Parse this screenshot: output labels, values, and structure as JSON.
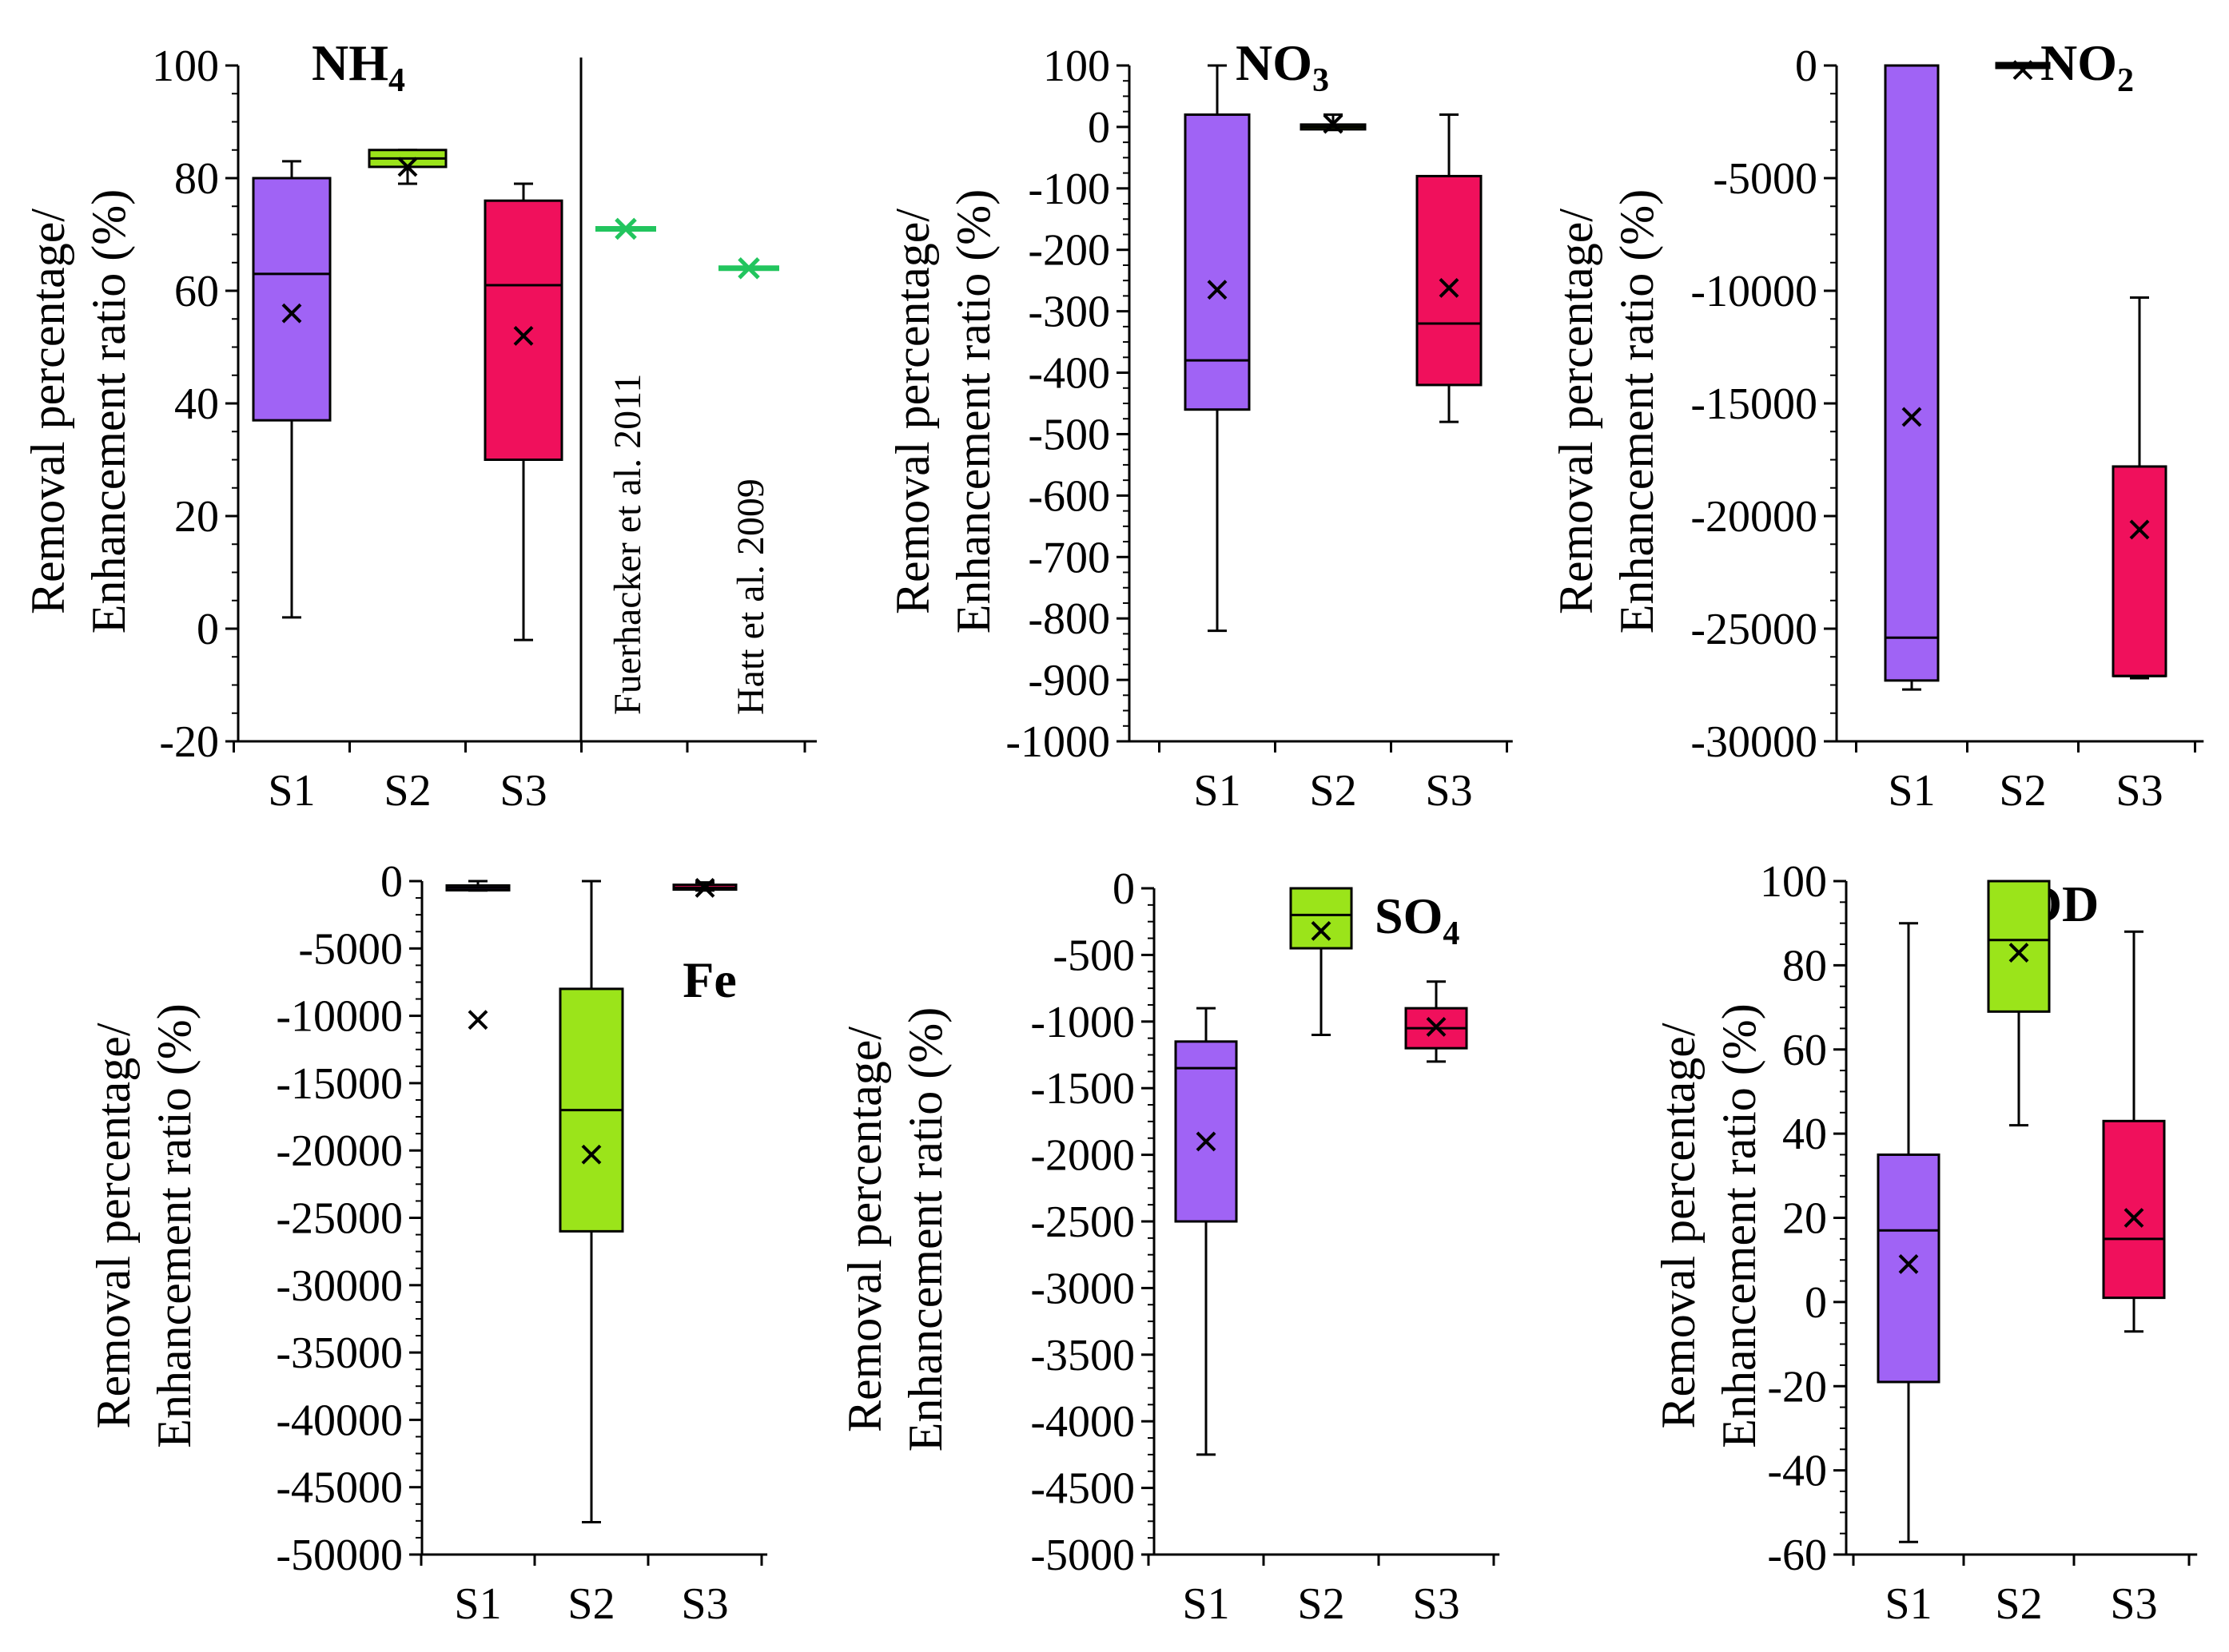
{
  "figure": {
    "y_axis_label_line1": "Removal percentage/",
    "y_axis_label_line2": "Enhancement ratio",
    "y_axis_unit": "(%)",
    "colors": {
      "S1": "#a063f5",
      "S2": "#9be41a",
      "S3": "#f0105c",
      "reference": "#22c55e"
    }
  },
  "chart_data": [
    {
      "type": "box",
      "title": "NH",
      "title_sub": "4",
      "ylim": [
        -20,
        100
      ],
      "yticks": [
        "100",
        "80",
        "60",
        "40",
        "20",
        "0",
        "-20"
      ],
      "categories": [
        "S1",
        "S2",
        "S3"
      ],
      "boxes": [
        {
          "name": "S1",
          "whisker_low": 2,
          "q1": 37,
          "median": 63,
          "q3": 80,
          "whisker_high": 83,
          "mean": 56
        },
        {
          "name": "S2",
          "whisker_low": 79,
          "q1": 82,
          "median": 83.5,
          "q3": 85,
          "whisker_high": 85,
          "mean": 82
        },
        {
          "name": "S3",
          "whisker_low": -2,
          "q1": 30,
          "median": 61,
          "q3": 76,
          "whisker_high": 79,
          "mean": 52
        }
      ],
      "references": [
        {
          "label": "Fuerhacker et al. 2011",
          "value": 71
        },
        {
          "label": "Hatt et al. 2009",
          "value": 64
        }
      ]
    },
    {
      "type": "box",
      "title": "NO",
      "title_sub": "3",
      "ylim": [
        -1000,
        100
      ],
      "yticks": [
        "100",
        "0",
        "-100",
        "-200",
        "-300",
        "-400",
        "-500",
        "-600",
        "-700",
        "-800",
        "-900",
        "-1000"
      ],
      "categories": [
        "S1",
        "S2",
        "S3"
      ],
      "boxes": [
        {
          "name": "S1",
          "whisker_low": -820,
          "q1": -460,
          "median": -380,
          "q3": 20,
          "whisker_high": 100,
          "mean": -265
        },
        {
          "name": "S2",
          "whisker_low": -5,
          "q1": -2,
          "median": 0,
          "q3": 2,
          "whisker_high": 20,
          "mean": 5
        },
        {
          "name": "S3",
          "whisker_low": -480,
          "q1": -420,
          "median": -320,
          "q3": -80,
          "whisker_high": 20,
          "mean": -262
        }
      ]
    },
    {
      "type": "box",
      "title": "NO",
      "title_sub": "2",
      "ylim": [
        -30000,
        0
      ],
      "yticks": [
        "0",
        "-5000",
        "-10000",
        "-15000",
        "-20000",
        "-25000",
        "-30000"
      ],
      "categories": [
        "S1",
        "S2",
        "S3"
      ],
      "boxes": [
        {
          "name": "S1",
          "whisker_low": -27700,
          "q1": -27300,
          "median": -25400,
          "q3": 0,
          "whisker_high": 0,
          "mean": -15600
        },
        {
          "name": "S2",
          "whisker_low": 0,
          "q1": 0,
          "median": 0,
          "q3": 0,
          "whisker_high": 0,
          "mean": -200
        },
        {
          "name": "S3",
          "whisker_low": -27200,
          "q1": -27100,
          "median": -27100,
          "q3": -17800,
          "whisker_high": -10300,
          "mean": -20600
        }
      ]
    },
    {
      "type": "box",
      "title": "Fe",
      "ylim": [
        -50000,
        0
      ],
      "yticks": [
        "0",
        "-5000",
        "-10000",
        "-15000",
        "-20000",
        "-25000",
        "-30000",
        "-35000",
        "-40000",
        "-45000",
        "-50000"
      ],
      "categories": [
        "S1",
        "S2",
        "S3"
      ],
      "boxes": [
        {
          "name": "S1",
          "whisker_low": -700,
          "q1": -600,
          "median": -500,
          "q3": -400,
          "whisker_high": 0,
          "mean": -10300
        },
        {
          "name": "S2",
          "whisker_low": -47600,
          "q1": -26000,
          "median": -17000,
          "q3": -8000,
          "whisker_high": 0,
          "mean": -20300
        },
        {
          "name": "S3",
          "whisker_low": -700,
          "q1": -600,
          "median": -500,
          "q3": -300,
          "whisker_high": -100,
          "mean": -500
        }
      ]
    },
    {
      "type": "box",
      "title": "SO",
      "title_sub": "4",
      "ylim": [
        -5000,
        0
      ],
      "yticks": [
        "0",
        "-500",
        "-1000",
        "-1500",
        "-2000",
        "-2500",
        "-3000",
        "-3500",
        "-4000",
        "-4500",
        "-5000"
      ],
      "categories": [
        "S1",
        "S2",
        "S3"
      ],
      "boxes": [
        {
          "name": "S1",
          "whisker_low": -4250,
          "q1": -2500,
          "median": -1350,
          "q3": -1150,
          "whisker_high": -900,
          "mean": -1900
        },
        {
          "name": "S2",
          "whisker_low": -1100,
          "q1": -450,
          "median": -200,
          "q3": 0,
          "whisker_high": 0,
          "mean": -320
        },
        {
          "name": "S3",
          "whisker_low": -1300,
          "q1": -1200,
          "median": -1050,
          "q3": -900,
          "whisker_high": -700,
          "mean": -1040
        }
      ]
    },
    {
      "type": "box",
      "title": "COD",
      "ylim": [
        -60,
        100
      ],
      "yticks": [
        "100",
        "80",
        "60",
        "40",
        "20",
        "0",
        "-20",
        "-40",
        "-60"
      ],
      "categories": [
        "S1",
        "S2",
        "S3"
      ],
      "boxes": [
        {
          "name": "S1",
          "whisker_low": -57,
          "q1": -19,
          "median": 17,
          "q3": 35,
          "whisker_high": 90,
          "mean": 9
        },
        {
          "name": "S2",
          "whisker_low": 42,
          "q1": 69,
          "median": 86,
          "q3": 100,
          "whisker_high": 100,
          "mean": 83
        },
        {
          "name": "S3",
          "whisker_low": -7,
          "q1": 1,
          "median": 15,
          "q3": 43,
          "whisker_high": 88,
          "mean": 20
        }
      ]
    }
  ]
}
